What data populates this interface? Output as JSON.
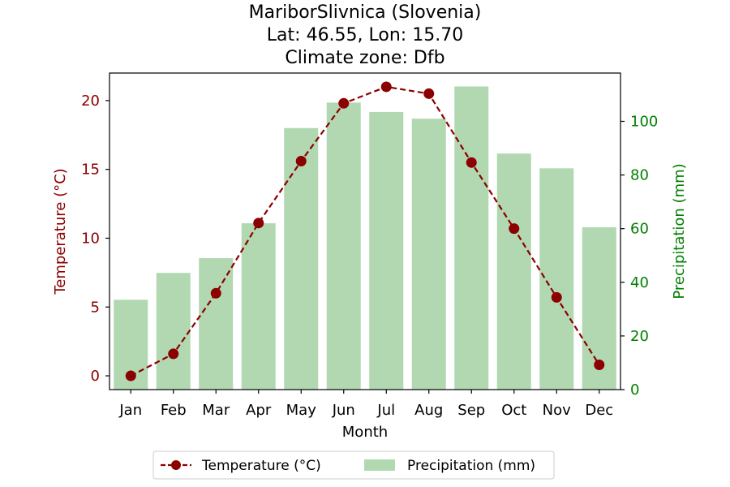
{
  "chart_data": {
    "type": "bar+line",
    "title": [
      "MariborSlivnica (Slovenia)",
      "Lat: 46.55, Lon: 15.70",
      "Climate zone: Dfb"
    ],
    "xlabel": "Month",
    "categories": [
      "Jan",
      "Feb",
      "Mar",
      "Apr",
      "May",
      "Jun",
      "Jul",
      "Aug",
      "Sep",
      "Oct",
      "Nov",
      "Dec"
    ],
    "series": [
      {
        "name": "Temperature (°C)",
        "kind": "line",
        "axis": "left",
        "color": "#8b0000",
        "values": [
          0.0,
          1.6,
          6.0,
          11.1,
          15.6,
          19.8,
          21.0,
          20.5,
          15.5,
          10.7,
          5.7,
          0.8
        ]
      },
      {
        "name": "Precipitation (mm)",
        "kind": "bar",
        "axis": "right",
        "color": "#b2d8b2",
        "values": [
          33.5,
          43.5,
          49.0,
          62.0,
          97.5,
          107.0,
          103.5,
          101.0,
          113.0,
          88.0,
          82.5,
          60.5
        ]
      }
    ],
    "ylabel_left": "Temperature (°C)",
    "ylabel_right": "Precipitation (mm)",
    "ylim_left": [
      -1,
      22
    ],
    "ylim_right": [
      0,
      118
    ],
    "yticks_left": [
      0,
      5,
      10,
      15,
      20
    ],
    "yticks_right": [
      0,
      20,
      40,
      60,
      80,
      100
    ],
    "left_axis_color": "#8b0000",
    "right_axis_color": "#008000",
    "grid": false,
    "legend_placement": "bottom-center"
  }
}
